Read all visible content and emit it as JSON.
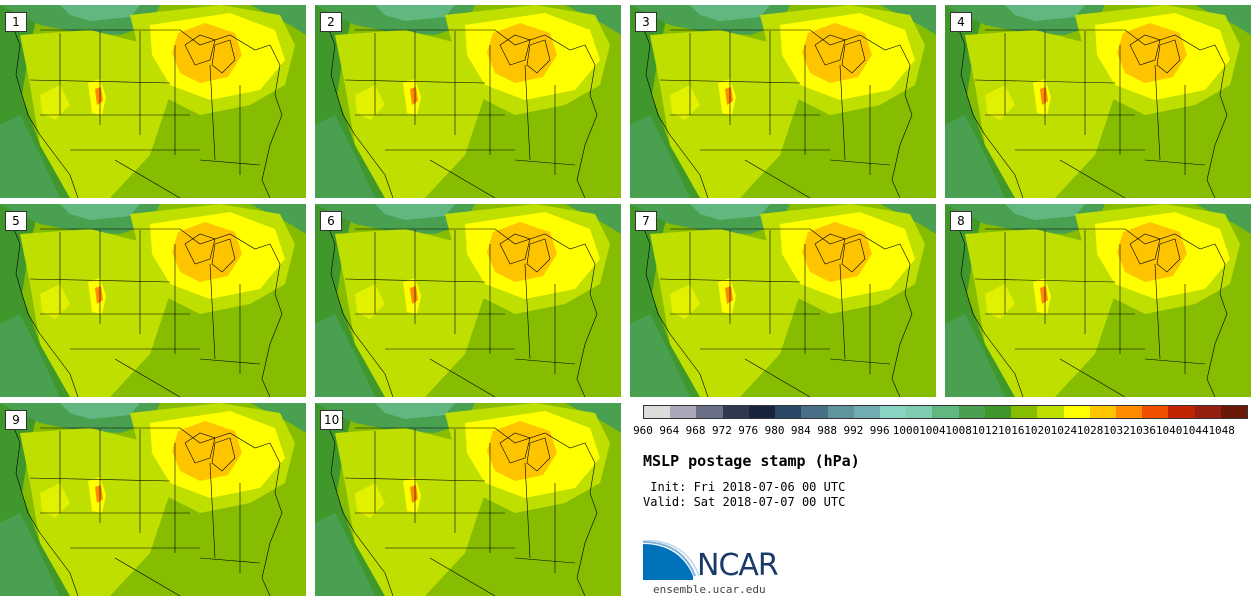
{
  "panels": [
    "1",
    "2",
    "3",
    "4",
    "5",
    "6",
    "7",
    "8",
    "9",
    "10"
  ],
  "colorbar": {
    "ticks": [
      "960",
      "964",
      "968",
      "972",
      "976",
      "980",
      "984",
      "988",
      "992",
      "996",
      "1000",
      "1004",
      "1008",
      "1012",
      "1016",
      "1020",
      "1024",
      "1028",
      "1032",
      "1036",
      "1040",
      "1044",
      "1048"
    ],
    "colors": [
      "#dcdcdc",
      "#a8a8b8",
      "#6a7088",
      "#303850",
      "#18243c",
      "#2a4868",
      "#4a7088",
      "#60949c",
      "#70acb0",
      "#88d4c4",
      "#80ccb0",
      "#60b880",
      "#48a050",
      "#40982c",
      "#86bd00",
      "#bfdf00",
      "#ffff00",
      "#ffc400",
      "#ff8a00",
      "#f05000",
      "#c02400",
      "#962010",
      "#6a1808"
    ]
  },
  "title": "MSLP postage stamp (hPa)",
  "init": " Init: Fri 2018-07-06 00 UTC",
  "valid": "Valid: Sat 2018-07-07 00 UTC",
  "logo": {
    "text": "NCAR",
    "accent": "#0072bc",
    "dark": "#1a3a6a"
  },
  "url": "ensemble.ucar.edu"
}
